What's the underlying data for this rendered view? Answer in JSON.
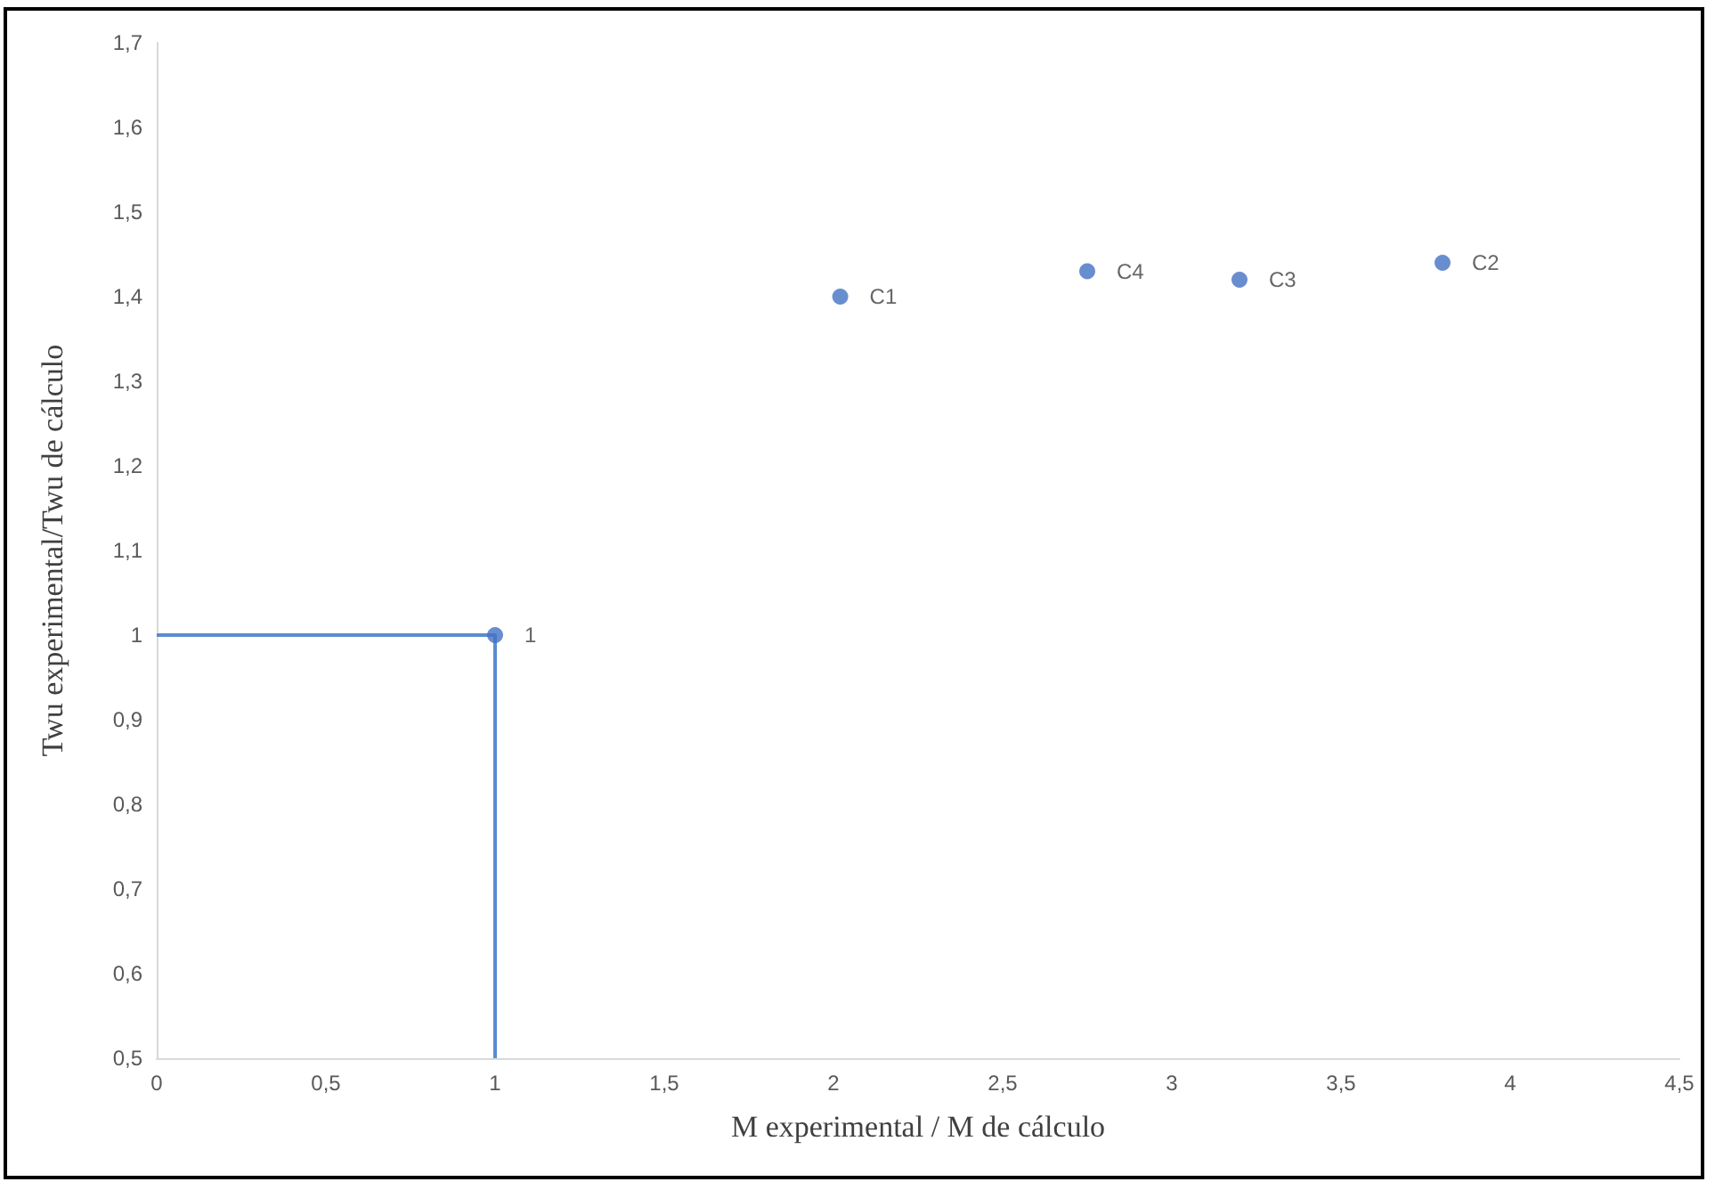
{
  "chart_data": {
    "type": "scatter",
    "xlabel": "M experimental / M de cálculo",
    "ylabel": "Twu experimental/Twu de cálculo",
    "series": [
      {
        "type": "line",
        "color": "#5b8bd0",
        "x": [
          0,
          1,
          1
        ],
        "values": [
          1,
          1,
          0.5
        ],
        "marker": "none"
      },
      {
        "color": "#4472c4",
        "x": [
          1,
          2.02,
          2.75,
          3.2,
          3.8
        ],
        "values": [
          1,
          1.4,
          1.43,
          1.42,
          1.44
        ],
        "value_labels": [
          "1",
          "C1",
          "C4",
          "C3",
          "C2"
        ],
        "marker": "circle"
      }
    ],
    "xlim": [
      0,
      4.5
    ],
    "xticks": [
      {
        "value": 0,
        "label": "0"
      },
      {
        "value": 0.5,
        "label": "0,5"
      },
      {
        "value": 1,
        "label": "1"
      },
      {
        "value": 1.5,
        "label": "1,5"
      },
      {
        "value": 2,
        "label": "2"
      },
      {
        "value": 2.5,
        "label": "2,5"
      },
      {
        "value": 3,
        "label": "3"
      },
      {
        "value": 3.5,
        "label": "3,5"
      },
      {
        "value": 4,
        "label": "4"
      },
      {
        "value": 4.5,
        "label": "4,5"
      }
    ],
    "ylim": [
      0.5,
      1.7
    ],
    "yticks": [
      {
        "value": 0.5,
        "label": "0,5"
      },
      {
        "value": 0.6,
        "label": "0,6"
      },
      {
        "value": 0.7,
        "label": "0,7"
      },
      {
        "value": 0.8,
        "label": "0,8"
      },
      {
        "value": 0.9,
        "label": "0,9"
      },
      {
        "value": 1,
        "label": "1"
      },
      {
        "value": 1.1,
        "label": "1,1"
      },
      {
        "value": 1.2,
        "label": "1,2"
      },
      {
        "value": 1.3,
        "label": "1,3"
      },
      {
        "value": 1.4,
        "label": "1,4"
      },
      {
        "value": 1.5,
        "label": "1,5"
      },
      {
        "value": 1.6,
        "label": "1,6"
      },
      {
        "value": 1.7,
        "label": "1,7"
      }
    ],
    "grid": false
  }
}
